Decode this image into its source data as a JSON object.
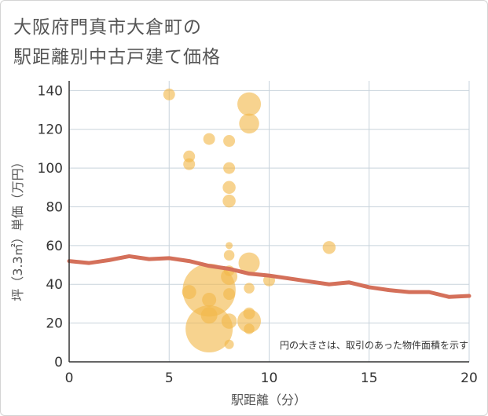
{
  "chart_data": {
    "type": "scatter",
    "title_lines": [
      "大阪府門真市大倉町の",
      "駅距離別中古戸建て価格"
    ],
    "xlabel": "駅距離（分）",
    "ylabel": "坪（3.3㎡）単価（万円）",
    "xlim": [
      0,
      20
    ],
    "ylim": [
      0,
      145
    ],
    "xticks": [
      0,
      5,
      10,
      15,
      20
    ],
    "yticks": [
      0,
      20,
      40,
      60,
      80,
      100,
      120,
      140
    ],
    "grid": true,
    "note": "円の大きさは、取引のあった物件面積を示す",
    "colors": {
      "bubble": "#f2b84b",
      "trend": "#d4705a",
      "grid": "#c8d3dc"
    },
    "bubbles": [
      {
        "x": 5,
        "y": 138,
        "size": 1.0
      },
      {
        "x": 6,
        "y": 106,
        "size": 1.0
      },
      {
        "x": 6,
        "y": 102,
        "size": 1.0
      },
      {
        "x": 6,
        "y": 36,
        "size": 1.2
      },
      {
        "x": 7,
        "y": 115,
        "size": 1.0
      },
      {
        "x": 7,
        "y": 37,
        "size": 4.5
      },
      {
        "x": 7,
        "y": 32,
        "size": 1.2
      },
      {
        "x": 7,
        "y": 24,
        "size": 1.4
      },
      {
        "x": 7,
        "y": 17,
        "size": 4.0
      },
      {
        "x": 8,
        "y": 114,
        "size": 1.0
      },
      {
        "x": 8,
        "y": 100,
        "size": 1.0
      },
      {
        "x": 8,
        "y": 90,
        "size": 1.1
      },
      {
        "x": 8,
        "y": 83,
        "size": 1.1
      },
      {
        "x": 8,
        "y": 60,
        "size": 0.6
      },
      {
        "x": 8,
        "y": 55,
        "size": 0.9
      },
      {
        "x": 8,
        "y": 47,
        "size": 0.9
      },
      {
        "x": 8,
        "y": 44,
        "size": 1.4
      },
      {
        "x": 8,
        "y": 35,
        "size": 1.0
      },
      {
        "x": 8,
        "y": 21,
        "size": 1.3
      },
      {
        "x": 8,
        "y": 9,
        "size": 0.8
      },
      {
        "x": 9,
        "y": 133,
        "size": 2.0
      },
      {
        "x": 9,
        "y": 123,
        "size": 1.7
      },
      {
        "x": 9,
        "y": 51,
        "size": 1.8
      },
      {
        "x": 9,
        "y": 38,
        "size": 0.9
      },
      {
        "x": 9,
        "y": 25,
        "size": 1.0
      },
      {
        "x": 9,
        "y": 21,
        "size": 2.0
      },
      {
        "x": 9,
        "y": 17,
        "size": 0.9
      },
      {
        "x": 10,
        "y": 42,
        "size": 1.0
      },
      {
        "x": 13,
        "y": 59,
        "size": 1.1
      }
    ],
    "trend": {
      "x": [
        0,
        1,
        2,
        3,
        4,
        5,
        6,
        7,
        8,
        9,
        10,
        11,
        12,
        13,
        14,
        15,
        16,
        17,
        18,
        19,
        20
      ],
      "y": [
        52,
        51,
        52.5,
        54.5,
        53,
        53.5,
        52,
        49.5,
        48,
        45.5,
        44.5,
        43,
        41.5,
        40,
        41,
        38.5,
        37,
        36,
        36,
        33.5,
        34
      ]
    }
  }
}
